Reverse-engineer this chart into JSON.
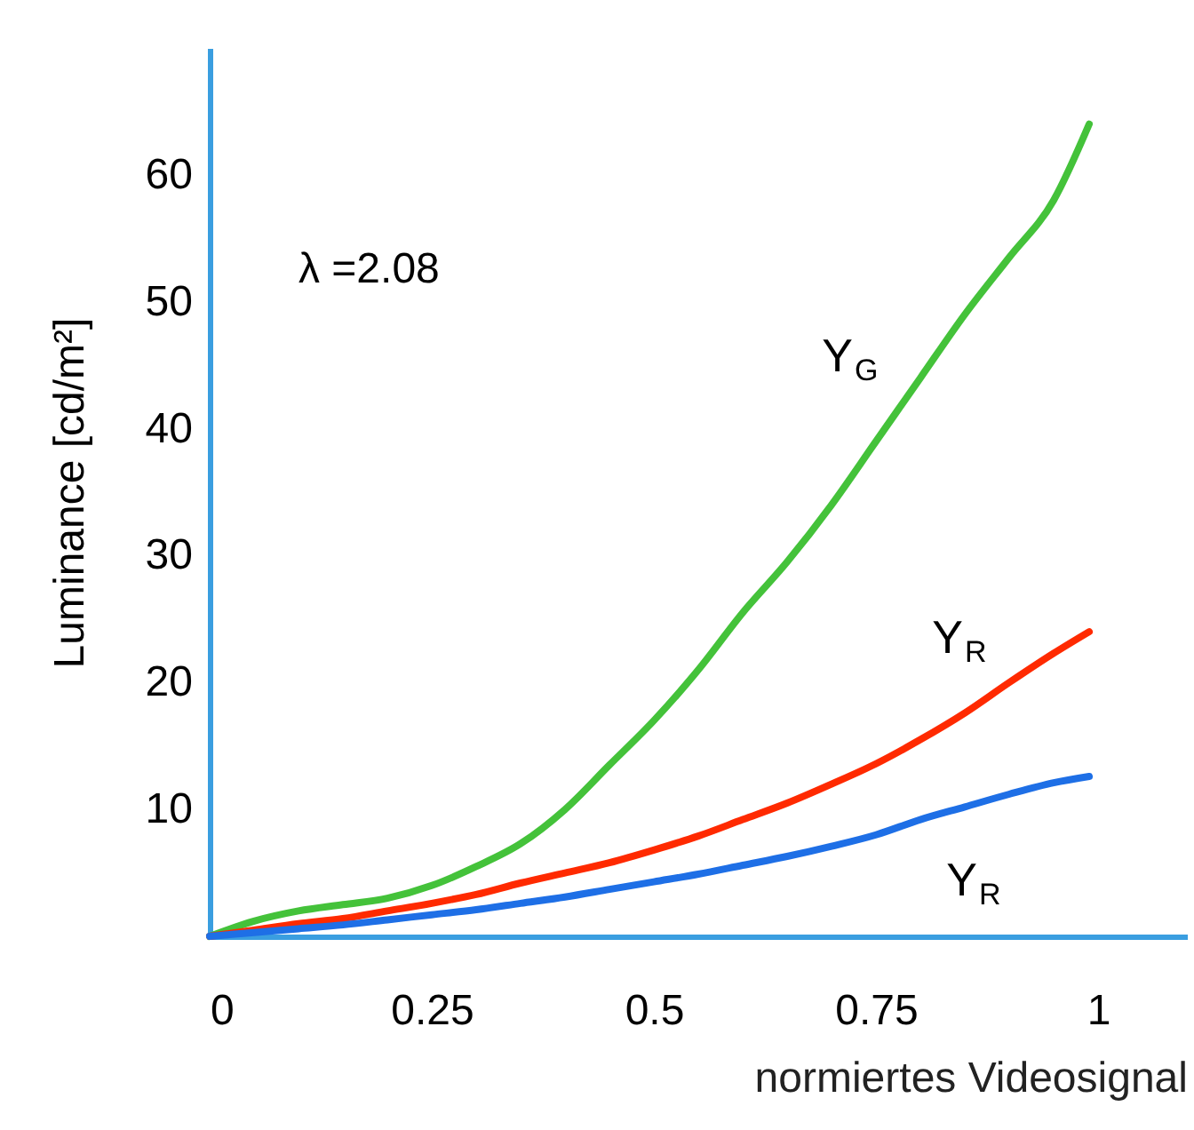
{
  "chart_data": {
    "type": "line",
    "xlabel": "normiertes Videosignal",
    "ylabel": "Luminance [cd/m²]",
    "annotations": [
      "λ =2.08"
    ],
    "x": [
      0,
      0.05,
      0.1,
      0.15,
      0.2,
      0.25,
      0.3,
      0.35,
      0.4,
      0.45,
      0.5,
      0.55,
      0.6,
      0.65,
      0.7,
      0.75,
      0.8,
      0.85,
      0.9,
      0.95,
      0.99
    ],
    "series": [
      {
        "name": "Y$_{G}$",
        "color": "#44c23a",
        "values": [
          0,
          1.2,
          2,
          2.5,
          3,
          4,
          5.5,
          7.3,
          10,
          13.5,
          17,
          21,
          25.5,
          29.5,
          34,
          39,
          44,
          49,
          53.5,
          58,
          64
        ]
      },
      {
        "name": "Y$_{R}$",
        "color": "#ff2a00",
        "values": [
          0,
          0.5,
          1,
          1.4,
          2,
          2.6,
          3.3,
          4.2,
          5,
          5.8,
          6.8,
          7.9,
          9.2,
          10.5,
          12,
          13.6,
          15.5,
          17.6,
          20,
          22.3,
          24
        ]
      },
      {
        "name": "Y$_{R}$",
        "color": "#1e6fe6",
        "values": [
          0,
          0.3,
          0.6,
          0.9,
          1.3,
          1.7,
          2.1,
          2.6,
          3.1,
          3.7,
          4.3,
          4.9,
          5.6,
          6.3,
          7.1,
          8,
          9.2,
          10.2,
          11.2,
          12.1,
          12.6
        ]
      }
    ],
    "xlim": [
      0,
      1.1
    ],
    "xticks": [
      0,
      0.25,
      0.5,
      0.75,
      1
    ],
    "ylim": [
      0,
      70
    ],
    "yticks": [
      10,
      20,
      30,
      40,
      50,
      60
    ],
    "grid": false,
    "legend": false,
    "marker": "none",
    "line_style": "solid"
  }
}
